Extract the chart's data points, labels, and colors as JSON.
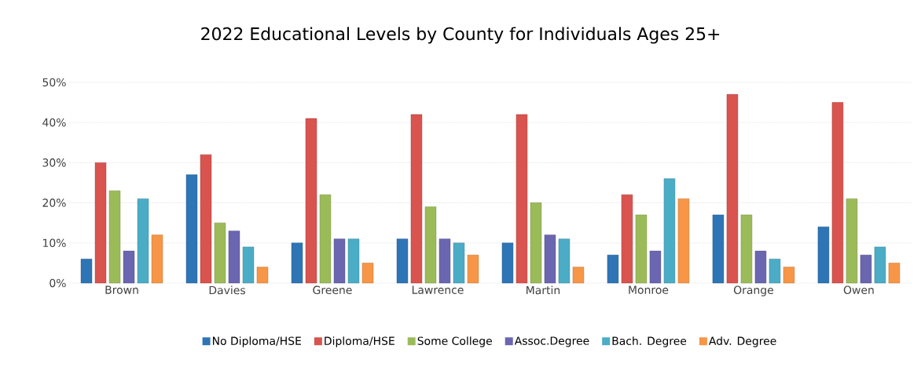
{
  "chart_data": {
    "type": "bar",
    "title": "2022 Educational Levels by County for Individuals Ages 25+",
    "categories": [
      "Brown",
      "Davies",
      "Greene",
      "Lawrence",
      "Martin",
      "Monroe",
      "Orange",
      "Owen"
    ],
    "series": [
      {
        "name": "No Diploma/HSE",
        "color": "#2e75b6",
        "values": [
          6,
          27,
          10,
          11,
          10,
          7,
          17,
          14
        ]
      },
      {
        "name": "Diploma/HSE",
        "color": "#d9534f",
        "values": [
          30,
          32,
          41,
          42,
          42,
          22,
          47,
          45
        ]
      },
      {
        "name": "Some College",
        "color": "#9bbb59",
        "values": [
          23,
          15,
          22,
          19,
          20,
          17,
          17,
          21
        ]
      },
      {
        "name": "Assoc.Degree",
        "color": "#6a66b0",
        "values": [
          8,
          13,
          11,
          11,
          12,
          8,
          8,
          7
        ]
      },
      {
        "name": "Bach. Degree",
        "color": "#4bacc6",
        "values": [
          21,
          9,
          11,
          10,
          11,
          26,
          6,
          9
        ]
      },
      {
        "name": "Adv. Degree",
        "color": "#f79646",
        "values": [
          12,
          4,
          5,
          7,
          4,
          21,
          4,
          5
        ]
      }
    ],
    "ylim": [
      0,
      50
    ],
    "yticks": [
      {
        "value": 0,
        "label": "0%"
      },
      {
        "value": 10,
        "label": "10%"
      },
      {
        "value": 20,
        "label": "20%"
      },
      {
        "value": 30,
        "label": "30%"
      },
      {
        "value": 40,
        "label": "40%"
      },
      {
        "value": 50,
        "label": "50%"
      }
    ],
    "grid": "y",
    "legend": "bottom"
  }
}
